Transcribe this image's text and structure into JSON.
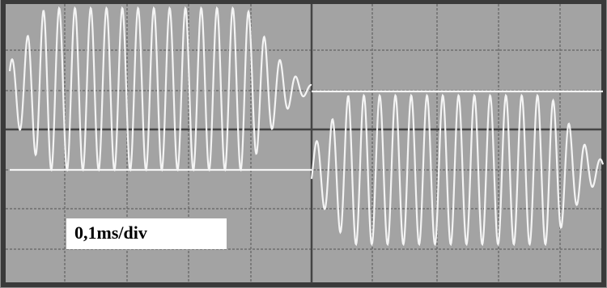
{
  "label": "0,1ms/div"
}
